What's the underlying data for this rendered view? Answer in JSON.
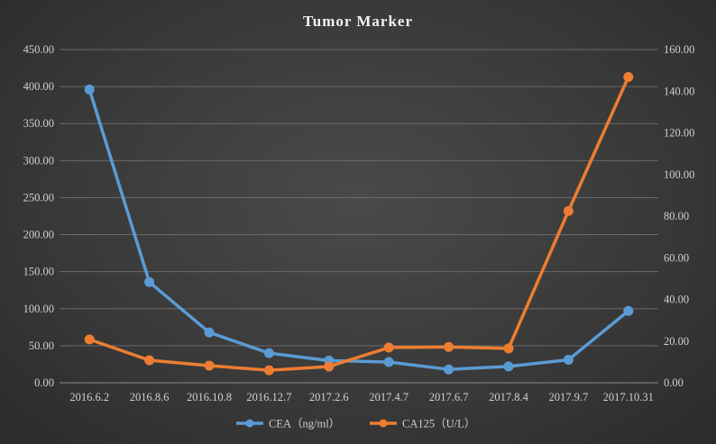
{
  "chart_data": {
    "type": "line",
    "title": "Tumor Marker",
    "categories": [
      "2016.6.2",
      "2016.8.6",
      "2016.10.8",
      "2016.12.7",
      "2017.2.6",
      "2017.4.7",
      "2017.6.7",
      "2017.8.4",
      "2017.9.7",
      "2017.10.31"
    ],
    "series": [
      {
        "name": "CEA（ng/ml）",
        "axis": "left",
        "color": "#5b9bd5",
        "values": [
          396,
          136,
          68,
          40,
          30,
          28,
          18,
          22,
          31,
          97
        ]
      },
      {
        "name": "CA125（U/L）",
        "axis": "right",
        "color": "#ed7d31",
        "values": [
          20.8,
          10.8,
          8.2,
          6.0,
          7.8,
          16.9,
          17.2,
          16.5,
          82.5,
          146.8
        ]
      }
    ],
    "y_left": {
      "ylim": [
        0,
        450
      ],
      "ticks": [
        "0.00",
        "50.00",
        "100.00",
        "150.00",
        "200.00",
        "250.00",
        "300.00",
        "350.00",
        "400.00",
        "450.00"
      ]
    },
    "y_right": {
      "ylim": [
        0,
        160
      ],
      "ticks": [
        "0.00",
        "20.00",
        "40.00",
        "60.00",
        "80.00",
        "100.00",
        "120.00",
        "140.00",
        "160.00"
      ]
    },
    "grid": true,
    "legend": "bottom"
  }
}
